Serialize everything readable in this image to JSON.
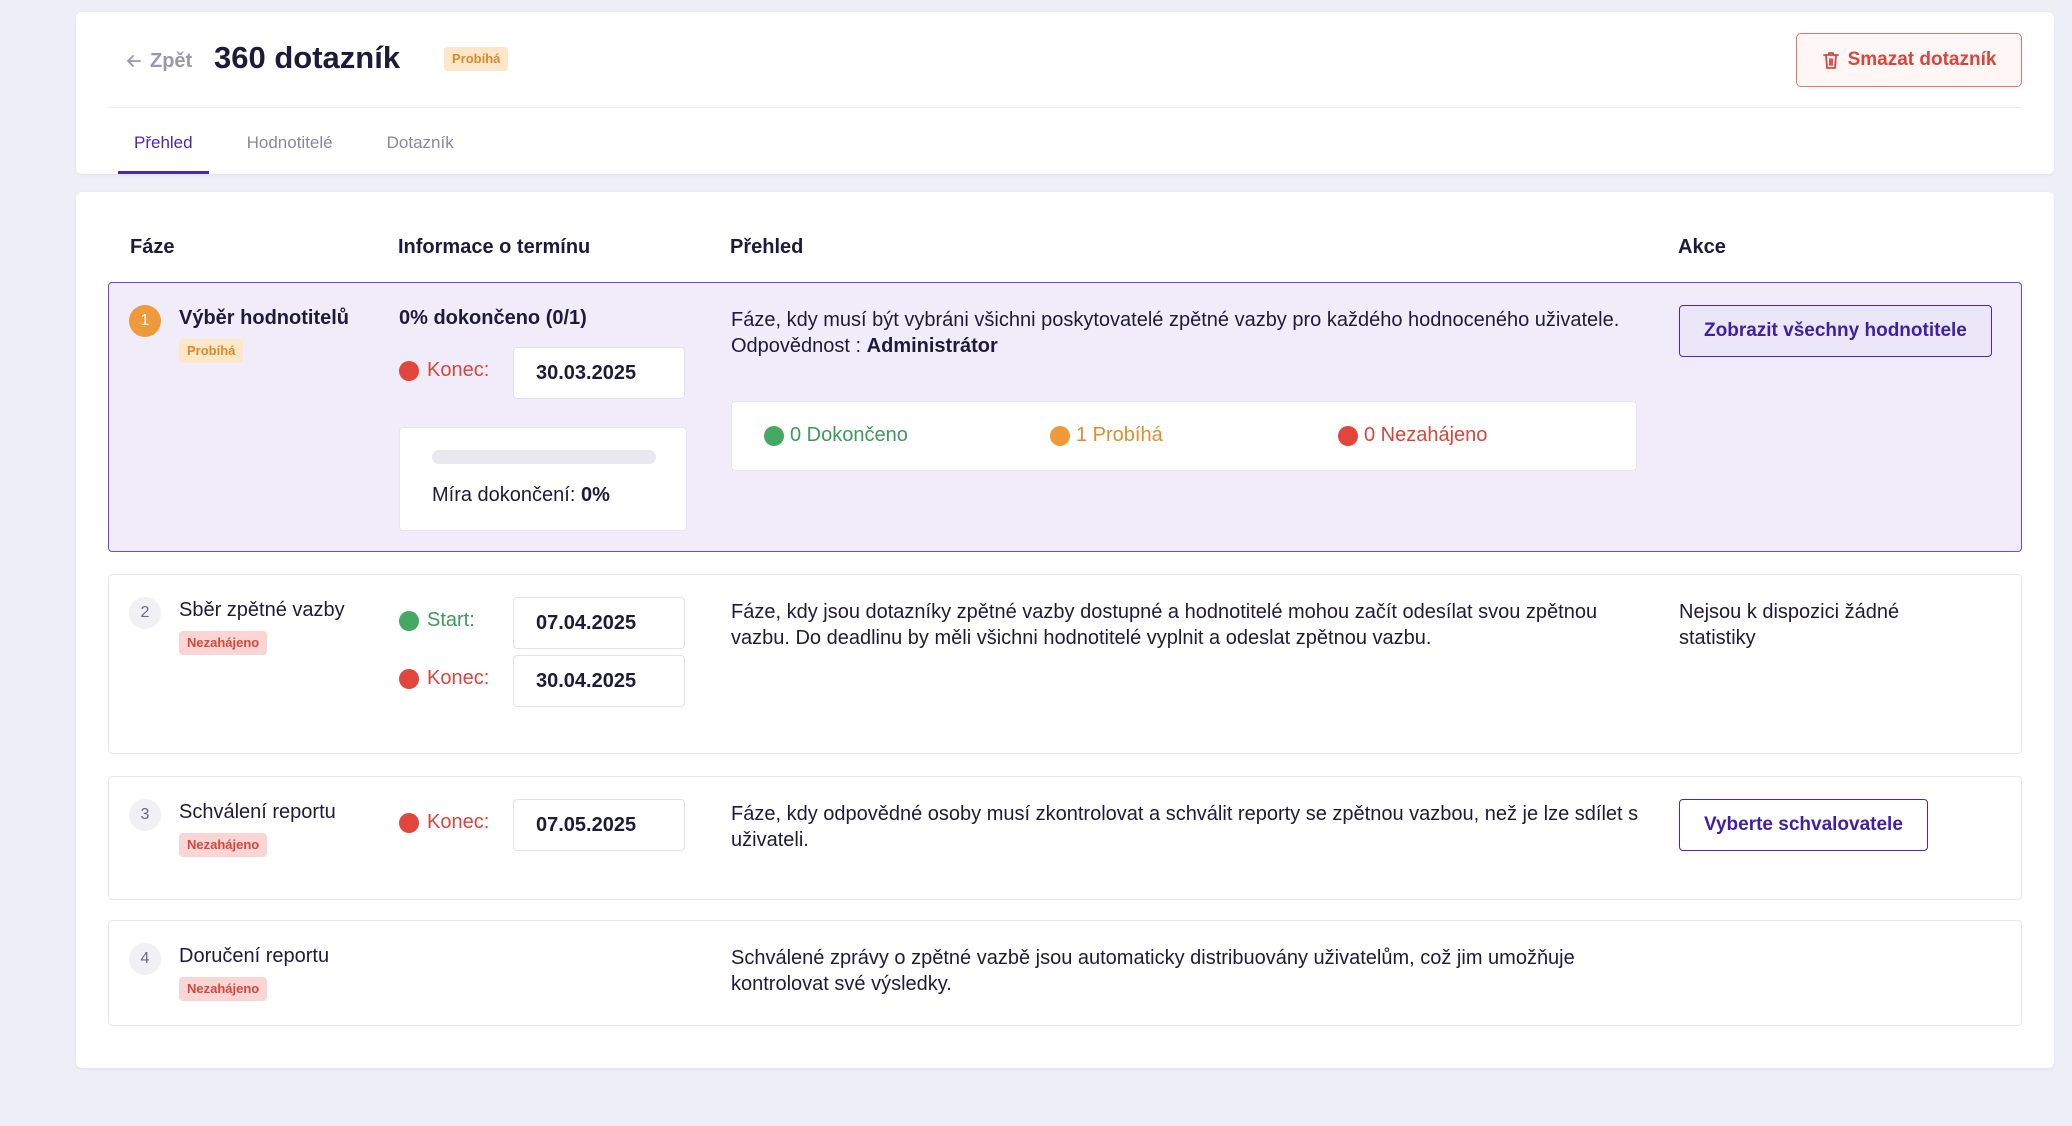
{
  "header": {
    "back_label": "Zpět",
    "title": "360 dotazník",
    "status_badge": "Probíhá",
    "delete_label": "Smazat dotazník",
    "tabs": [
      {
        "label": "Přehled",
        "active": true
      },
      {
        "label": "Hodnotitelé",
        "active": false
      },
      {
        "label": "Dotazník",
        "active": false
      }
    ]
  },
  "table": {
    "columns": [
      "Fáze",
      "Informace o termínu",
      "Přehled",
      "Akce"
    ],
    "phases": [
      {
        "number": "1",
        "name": "Výběr hodnotitelů",
        "status": "Probíhá",
        "completion": "0% dokončeno (0/1)",
        "end_label": "Konec:",
        "end_date": "30.03.2025",
        "progress_percent": 0,
        "rate_label": "Míra dokončení:",
        "rate_value": "0%",
        "description": "Fáze, kdy musí být vybráni všichni poskytovatelé zpětné vazby pro každého hodnoceného uživatele.",
        "responsibility_label": "Odpovědnost :",
        "responsibility_value": "Administrátor",
        "stats": {
          "completed": "0 Dokončeno",
          "in_progress": "1 Probíhá",
          "not_started": "0 Nezahájeno"
        },
        "action": "Zobrazit všechny hodnotitele"
      },
      {
        "number": "2",
        "name": "Sběr zpětné vazby",
        "status": "Nezahájeno",
        "start_label": "Start:",
        "start_date": "07.04.2025",
        "end_label": "Konec:",
        "end_date": "30.04.2025",
        "description": "Fáze, kdy jsou dotazníky zpětné vazby dostupné a hodnotitelé mohou začít odesílat svou zpětnou vazbu. Do deadlinu by měli všichni hodnotitelé vyplnit a odeslat zpětnou vazbu.",
        "no_stats": "Nejsou k dispozici žádné statistiky"
      },
      {
        "number": "3",
        "name": "Schválení reportu",
        "status": "Nezahájeno",
        "end_label": "Konec:",
        "end_date": "07.05.2025",
        "description": "Fáze, kdy odpovědné osoby musí zkontrolovat a schválit reporty se zpětnou vazbou, než je lze sdílet s uživateli.",
        "action": "Vyberte schvalovatele"
      },
      {
        "number": "4",
        "name": "Doručení reportu",
        "status": "Nezahájeno",
        "description": "Schválené zprávy o zpětné vazbě jsou automaticky distribuovány uživatelům, což jim umožňuje kontrolovat své výsledky."
      }
    ]
  },
  "colors": {
    "accent": "#4a27b8",
    "danger": "#d9453b",
    "success": "#45a863",
    "warning": "#ee9a3a"
  },
  "icons": [
    "arrow-left-icon",
    "trash-icon"
  ]
}
